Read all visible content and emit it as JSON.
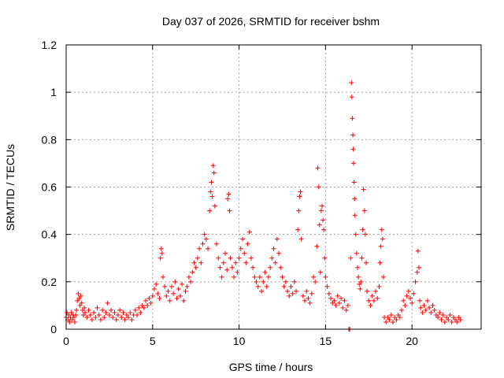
{
  "chart_data": {
    "type": "scatter",
    "title": "Day 037 of 2026, SRMTID for receiver bshm",
    "xlabel": "GPS time / hours",
    "ylabel": "SRMTID / TECUs",
    "xlim": [
      0,
      24
    ],
    "ylim": [
      0,
      1.2
    ],
    "xticks": [
      0,
      5,
      10,
      15,
      20
    ],
    "xtick_labels": [
      "0",
      "5",
      "10",
      "15",
      "20"
    ],
    "yticks": [
      0,
      0.2,
      0.4,
      0.6,
      0.8,
      1,
      1.2
    ],
    "ytick_labels": [
      "0",
      "0.2",
      "0.4",
      "0.6",
      "0.8",
      "1",
      "1.2"
    ],
    "grid": true,
    "marker": "+",
    "series": [
      {
        "name": "SRMTID",
        "color": "#ff0000",
        "points": [
          [
            0.0,
            0.05
          ],
          [
            0.05,
            0.07
          ],
          [
            0.1,
            0.04
          ],
          [
            0.15,
            0.06
          ],
          [
            0.2,
            0.03
          ],
          [
            0.25,
            0.05
          ],
          [
            0.3,
            0.07
          ],
          [
            0.35,
            0.04
          ],
          [
            0.4,
            0.06
          ],
          [
            0.45,
            0.05
          ],
          [
            0.5,
            0.03
          ],
          [
            0.55,
            0.06
          ],
          [
            0.6,
            0.08
          ],
          [
            0.65,
            0.12
          ],
          [
            0.7,
            0.15
          ],
          [
            0.75,
            0.13
          ],
          [
            0.8,
            0.1
          ],
          [
            0.85,
            0.14
          ],
          [
            0.9,
            0.11
          ],
          [
            0.95,
            0.08
          ],
          [
            1.0,
            0.06
          ],
          [
            1.05,
            0.09
          ],
          [
            1.1,
            0.07
          ],
          [
            1.2,
            0.05
          ],
          [
            1.3,
            0.08
          ],
          [
            1.4,
            0.06
          ],
          [
            1.5,
            0.04
          ],
          [
            1.6,
            0.07
          ],
          [
            1.7,
            0.05
          ],
          [
            1.8,
            0.09
          ],
          [
            1.9,
            0.06
          ],
          [
            2.0,
            0.04
          ],
          [
            2.1,
            0.08
          ],
          [
            2.2,
            0.05
          ],
          [
            2.3,
            0.07
          ],
          [
            2.4,
            0.11
          ],
          [
            2.5,
            0.06
          ],
          [
            2.6,
            0.08
          ],
          [
            2.7,
            0.05
          ],
          [
            2.8,
            0.07
          ],
          [
            2.9,
            0.04
          ],
          [
            3.0,
            0.06
          ],
          [
            3.1,
            0.08
          ],
          [
            3.2,
            0.05
          ],
          [
            3.3,
            0.07
          ],
          [
            3.4,
            0.04
          ],
          [
            3.5,
            0.06
          ],
          [
            3.6,
            0.05
          ],
          [
            3.7,
            0.07
          ],
          [
            3.8,
            0.04
          ],
          [
            3.9,
            0.06
          ],
          [
            4.0,
            0.08
          ],
          [
            4.1,
            0.06
          ],
          [
            4.2,
            0.09
          ],
          [
            4.3,
            0.07
          ],
          [
            4.4,
            0.1
          ],
          [
            4.5,
            0.09
          ],
          [
            4.6,
            0.12
          ],
          [
            4.7,
            0.1
          ],
          [
            4.8,
            0.13
          ],
          [
            4.9,
            0.11
          ],
          [
            5.0,
            0.14
          ],
          [
            5.1,
            0.17
          ],
          [
            5.2,
            0.19
          ],
          [
            5.3,
            0.15
          ],
          [
            5.4,
            0.13
          ],
          [
            5.45,
            0.3
          ],
          [
            5.5,
            0.34
          ],
          [
            5.55,
            0.32
          ],
          [
            5.6,
            0.22
          ],
          [
            5.7,
            0.18
          ],
          [
            5.8,
            0.14
          ],
          [
            5.9,
            0.16
          ],
          [
            6.0,
            0.12
          ],
          [
            6.1,
            0.18
          ],
          [
            6.2,
            0.15
          ],
          [
            6.3,
            0.2
          ],
          [
            6.4,
            0.13
          ],
          [
            6.5,
            0.17
          ],
          [
            6.6,
            0.14
          ],
          [
            6.7,
            0.19
          ],
          [
            6.8,
            0.12
          ],
          [
            6.9,
            0.16
          ],
          [
            7.0,
            0.18
          ],
          [
            7.1,
            0.22
          ],
          [
            7.2,
            0.2
          ],
          [
            7.3,
            0.24
          ],
          [
            7.4,
            0.28
          ],
          [
            7.5,
            0.26
          ],
          [
            7.6,
            0.3
          ],
          [
            7.7,
            0.34
          ],
          [
            7.8,
            0.28
          ],
          [
            7.9,
            0.36
          ],
          [
            8.0,
            0.4
          ],
          [
            8.1,
            0.38
          ],
          [
            8.2,
            0.34
          ],
          [
            8.3,
            0.5
          ],
          [
            8.35,
            0.58
          ],
          [
            8.4,
            0.62
          ],
          [
            8.45,
            0.56
          ],
          [
            8.5,
            0.69
          ],
          [
            8.55,
            0.66
          ],
          [
            8.6,
            0.52
          ],
          [
            8.7,
            0.36
          ],
          [
            8.8,
            0.3
          ],
          [
            8.9,
            0.26
          ],
          [
            9.0,
            0.22
          ],
          [
            9.1,
            0.28
          ],
          [
            9.2,
            0.32
          ],
          [
            9.3,
            0.25
          ],
          [
            9.35,
            0.55
          ],
          [
            9.4,
            0.57
          ],
          [
            9.45,
            0.5
          ],
          [
            9.5,
            0.3
          ],
          [
            9.6,
            0.26
          ],
          [
            9.7,
            0.22
          ],
          [
            9.8,
            0.28
          ],
          [
            9.9,
            0.24
          ],
          [
            10.0,
            0.3
          ],
          [
            10.1,
            0.34
          ],
          [
            10.2,
            0.38
          ],
          [
            10.3,
            0.32
          ],
          [
            10.4,
            0.28
          ],
          [
            10.5,
            0.36
          ],
          [
            10.6,
            0.41
          ],
          [
            10.7,
            0.3
          ],
          [
            10.8,
            0.26
          ],
          [
            10.9,
            0.22
          ],
          [
            11.0,
            0.2
          ],
          [
            11.1,
            0.18
          ],
          [
            11.2,
            0.22
          ],
          [
            11.3,
            0.16
          ],
          [
            11.4,
            0.2
          ],
          [
            11.5,
            0.24
          ],
          [
            11.6,
            0.18
          ],
          [
            11.7,
            0.22
          ],
          [
            11.8,
            0.26
          ],
          [
            11.9,
            0.3
          ],
          [
            12.0,
            0.34
          ],
          [
            12.1,
            0.28
          ],
          [
            12.2,
            0.38
          ],
          [
            12.3,
            0.32
          ],
          [
            12.4,
            0.26
          ],
          [
            12.5,
            0.22
          ],
          [
            12.6,
            0.18
          ],
          [
            12.7,
            0.2
          ],
          [
            12.8,
            0.16
          ],
          [
            12.9,
            0.14
          ],
          [
            13.0,
            0.18
          ],
          [
            13.1,
            0.15
          ],
          [
            13.2,
            0.2
          ],
          [
            13.3,
            0.16
          ],
          [
            13.4,
            0.42
          ],
          [
            13.45,
            0.5
          ],
          [
            13.5,
            0.56
          ],
          [
            13.55,
            0.58
          ],
          [
            13.6,
            0.38
          ],
          [
            13.7,
            0.14
          ],
          [
            13.8,
            0.12
          ],
          [
            13.9,
            0.16
          ],
          [
            14.0,
            0.13
          ],
          [
            14.1,
            0.11
          ],
          [
            14.2,
            0.15
          ],
          [
            14.3,
            0.22
          ],
          [
            14.4,
            0.2
          ],
          [
            14.5,
            0.35
          ],
          [
            14.55,
            0.68
          ],
          [
            14.6,
            0.6
          ],
          [
            14.65,
            0.44
          ],
          [
            14.7,
            0.24
          ],
          [
            14.75,
            0.5
          ],
          [
            14.8,
            0.52
          ],
          [
            14.85,
            0.46
          ],
          [
            14.9,
            0.42
          ],
          [
            14.95,
            0.3
          ],
          [
            15.0,
            0.22
          ],
          [
            15.1,
            0.18
          ],
          [
            15.2,
            0.15
          ],
          [
            15.3,
            0.13
          ],
          [
            15.4,
            0.11
          ],
          [
            15.5,
            0.12
          ],
          [
            15.6,
            0.1
          ],
          [
            15.7,
            0.14
          ],
          [
            15.8,
            0.11
          ],
          [
            15.9,
            0.13
          ],
          [
            16.0,
            0.09
          ],
          [
            16.1,
            0.12
          ],
          [
            16.2,
            0.08
          ],
          [
            16.3,
            0.1
          ],
          [
            16.35,
            0.0
          ],
          [
            16.4,
            0.0
          ],
          [
            16.45,
            0.3
          ],
          [
            16.5,
            1.04
          ],
          [
            16.52,
            0.98
          ],
          [
            16.55,
            0.89
          ],
          [
            16.58,
            0.82
          ],
          [
            16.6,
            0.76
          ],
          [
            16.62,
            0.7
          ],
          [
            16.65,
            0.62
          ],
          [
            16.68,
            0.55
          ],
          [
            16.7,
            0.48
          ],
          [
            16.75,
            0.4
          ],
          [
            16.8,
            0.32
          ],
          [
            16.85,
            0.26
          ],
          [
            16.9,
            0.22
          ],
          [
            16.95,
            0.19
          ],
          [
            17.0,
            0.17
          ],
          [
            17.05,
            0.2
          ],
          [
            17.1,
            0.3
          ],
          [
            17.15,
            0.42
          ],
          [
            17.2,
            0.59
          ],
          [
            17.25,
            0.5
          ],
          [
            17.3,
            0.4
          ],
          [
            17.35,
            0.28
          ],
          [
            17.4,
            0.16
          ],
          [
            17.5,
            0.12
          ],
          [
            17.6,
            0.1
          ],
          [
            17.7,
            0.14
          ],
          [
            17.8,
            0.12
          ],
          [
            17.9,
            0.16
          ],
          [
            18.0,
            0.13
          ],
          [
            18.1,
            0.18
          ],
          [
            18.15,
            0.28
          ],
          [
            18.2,
            0.35
          ],
          [
            18.25,
            0.42
          ],
          [
            18.3,
            0.38
          ],
          [
            18.35,
            0.22
          ],
          [
            18.4,
            0.05
          ],
          [
            18.5,
            0.03
          ],
          [
            18.6,
            0.05
          ],
          [
            18.7,
            0.04
          ],
          [
            18.8,
            0.06
          ],
          [
            18.9,
            0.03
          ],
          [
            19.0,
            0.05
          ],
          [
            19.1,
            0.04
          ],
          [
            19.2,
            0.06
          ],
          [
            19.3,
            0.05
          ],
          [
            19.4,
            0.08
          ],
          [
            19.5,
            0.12
          ],
          [
            19.6,
            0.1
          ],
          [
            19.7,
            0.14
          ],
          [
            19.8,
            0.16
          ],
          [
            19.9,
            0.13
          ],
          [
            20.0,
            0.11
          ],
          [
            20.1,
            0.15
          ],
          [
            20.2,
            0.2
          ],
          [
            20.3,
            0.24
          ],
          [
            20.35,
            0.33
          ],
          [
            20.4,
            0.26
          ],
          [
            20.45,
            0.12
          ],
          [
            20.5,
            0.09
          ],
          [
            20.6,
            0.07
          ],
          [
            20.7,
            0.1
          ],
          [
            20.8,
            0.08
          ],
          [
            20.9,
            0.12
          ],
          [
            21.0,
            0.09
          ],
          [
            21.1,
            0.07
          ],
          [
            21.2,
            0.1
          ],
          [
            21.3,
            0.08
          ],
          [
            21.4,
            0.06
          ],
          [
            21.5,
            0.05
          ],
          [
            21.6,
            0.07
          ],
          [
            21.7,
            0.04
          ],
          [
            21.8,
            0.06
          ],
          [
            21.9,
            0.03
          ],
          [
            22.0,
            0.05
          ],
          [
            22.1,
            0.04
          ],
          [
            22.2,
            0.06
          ],
          [
            22.3,
            0.03
          ],
          [
            22.4,
            0.05
          ],
          [
            22.5,
            0.04
          ],
          [
            22.6,
            0.03
          ],
          [
            22.7,
            0.05
          ],
          [
            22.8,
            0.04
          ]
        ]
      }
    ]
  }
}
